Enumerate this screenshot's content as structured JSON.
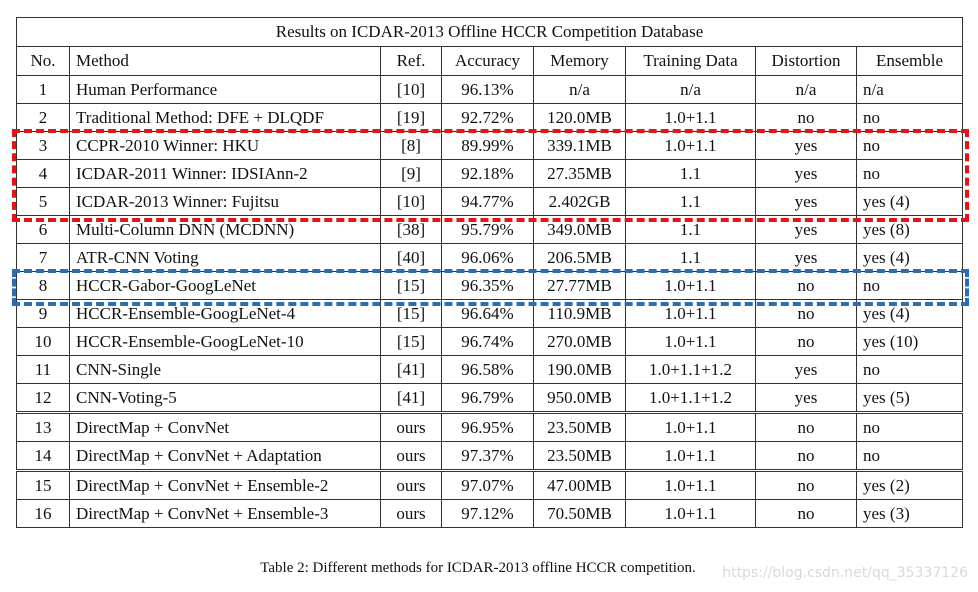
{
  "table": {
    "title": "Results on ICDAR-2013 Offline HCCR Competition Database",
    "headers": [
      "No.",
      "Method",
      "Ref.",
      "Accuracy",
      "Memory",
      "Training Data",
      "Distortion",
      "Ensemble"
    ],
    "rows": [
      {
        "no": "1",
        "method": "Human Performance",
        "ref": "[10]",
        "accuracy": "96.13%",
        "memory": "n/a",
        "training": "n/a",
        "distortion": "n/a",
        "ensemble": "n/a"
      },
      {
        "no": "2",
        "method": "Traditional Method: DFE + DLQDF",
        "ref": "[19]",
        "accuracy": "92.72%",
        "memory": "120.0MB",
        "training": "1.0+1.1",
        "distortion": "no",
        "ensemble": "no"
      },
      {
        "no": "3",
        "method": "CCPR-2010  Winner: HKU",
        "ref": "[8]",
        "accuracy": "89.99%",
        "memory": "339.1MB",
        "training": "1.0+1.1",
        "distortion": "yes",
        "ensemble": "no"
      },
      {
        "no": "4",
        "method": "ICDAR-2011 Winner: IDSIAnn-2",
        "ref": "[9]",
        "accuracy": "92.18%",
        "memory": "27.35MB",
        "training": "1.1",
        "distortion": "yes",
        "ensemble": "no"
      },
      {
        "no": "5",
        "method": "ICDAR-2013 Winner: Fujitsu",
        "ref": "[10]",
        "accuracy": "94.77%",
        "memory": "2.402GB",
        "training": "1.1",
        "distortion": "yes",
        "ensemble": "yes (4)"
      },
      {
        "no": "6",
        "method": "Multi-Column DNN (MCDNN)",
        "ref": "[38]",
        "accuracy": "95.79%",
        "memory": "349.0MB",
        "training": "1.1",
        "distortion": "yes",
        "ensemble": "yes (8)"
      },
      {
        "no": "7",
        "method": "ATR-CNN Voting",
        "ref": "[40]",
        "accuracy": "96.06%",
        "memory": "206.5MB",
        "training": "1.1",
        "distortion": "yes",
        "ensemble": "yes (4)"
      },
      {
        "no": "8",
        "method": "HCCR-Gabor-GoogLeNet",
        "ref": "[15]",
        "accuracy": "96.35%",
        "memory": "27.77MB",
        "training": "1.0+1.1",
        "distortion": "no",
        "ensemble": "no"
      },
      {
        "no": "9",
        "method": "HCCR-Ensemble-GoogLeNet-4",
        "ref": "[15]",
        "accuracy": "96.64%",
        "memory": "110.9MB",
        "training": "1.0+1.1",
        "distortion": "no",
        "ensemble": "yes (4)"
      },
      {
        "no": "10",
        "method": "HCCR-Ensemble-GoogLeNet-10",
        "ref": "[15]",
        "accuracy": "96.74%",
        "memory": "270.0MB",
        "training": "1.0+1.1",
        "distortion": "no",
        "ensemble": "yes (10)"
      },
      {
        "no": "11",
        "method": "CNN-Single",
        "ref": "[41]",
        "accuracy": "96.58%",
        "memory": "190.0MB",
        "training": "1.0+1.1+1.2",
        "distortion": "yes",
        "ensemble": "no"
      },
      {
        "no": "12",
        "method": "CNN-Voting-5",
        "ref": "[41]",
        "accuracy": "96.79%",
        "memory": "950.0MB",
        "training": "1.0+1.1+1.2",
        "distortion": "yes",
        "ensemble": "yes (5)"
      },
      {
        "no": "13",
        "method": "DirectMap + ConvNet",
        "ref": "ours",
        "accuracy": "96.95%",
        "memory": "23.50MB",
        "training": "1.0+1.1",
        "distortion": "no",
        "ensemble": "no",
        "bold_accuracy": true
      },
      {
        "no": "14",
        "method": "DirectMap + ConvNet + Adaptation",
        "ref": "ours",
        "accuracy": "97.37%",
        "memory": "23.50MB",
        "training": "1.0+1.1",
        "distortion": "no",
        "ensemble": "no",
        "bold_accuracy": true
      },
      {
        "no": "15",
        "method": "DirectMap + ConvNet + Ensemble-2",
        "ref": "ours",
        "accuracy": "97.07%",
        "memory": "47.00MB",
        "training": "1.0+1.1",
        "distortion": "no",
        "ensemble": "yes (2)"
      },
      {
        "no": "16",
        "method": "DirectMap + ConvNet + Ensemble-3",
        "ref": "ours",
        "accuracy": "97.12%",
        "memory": "70.50MB",
        "training": "1.0+1.1",
        "distortion": "no",
        "ensemble": "yes (3)"
      }
    ]
  },
  "highlights": {
    "red": {
      "color": "#e0161b",
      "rows": "3-5"
    },
    "blue": {
      "color": "#2e6db4",
      "rows": "8"
    }
  },
  "caption": "Table 2: Different methods for ICDAR-2013 offline HCCR competition.",
  "watermark": "https://blog.csdn.net/qq_35337126"
}
